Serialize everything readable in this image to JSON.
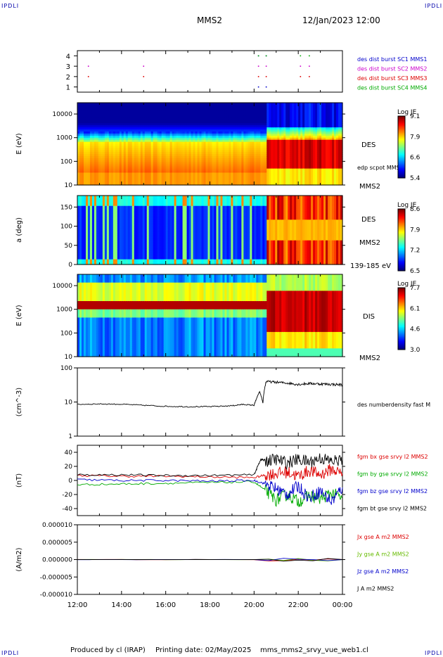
{
  "header": {
    "corner_label": "IPDLI",
    "spacecraft": "MMS2",
    "datetime": "12/Jan/2023 12:00"
  },
  "footer": {
    "produced_by": "Produced by cl (IRAP)",
    "printing_date": "Printing date: 02/May/2025",
    "script_name": "mms_mms2_srvy_vue_web1.cl"
  },
  "x_axis": {
    "ticks": [
      "12:00",
      "14:00",
      "16:00",
      "18:00",
      "20:00",
      "22:00",
      "00:00"
    ],
    "range_hours": [
      12,
      24
    ]
  },
  "chart_data": [
    {
      "type": "scatter",
      "panel": "burst-flags",
      "y_ticks": [
        "4",
        "3",
        "2",
        "1"
      ],
      "ylim": [
        0.5,
        4.5
      ],
      "series": [
        {
          "name": "des dist burst SC1 MMS1",
          "color": "#0000cc",
          "level": 4,
          "x_hours": [
            20.2,
            20.55
          ]
        },
        {
          "name": "des dist burst SC2 MMS2",
          "color": "#cc00cc",
          "level": 3,
          "x_hours": [
            12.5,
            15.0,
            20.2,
            20.55,
            22.1,
            22.5
          ]
        },
        {
          "name": "des dist burst SC3 MMS3",
          "color": "#dd0000",
          "level": 2,
          "x_hours": [
            12.5,
            15.0,
            20.2,
            20.55,
            22.1,
            22.5
          ]
        },
        {
          "name": "des dist burst SC4 MMS4",
          "color": "#00aa00",
          "level": 4,
          "x_hours": [
            20.2,
            20.55,
            22.1,
            22.5
          ]
        }
      ],
      "extra_marks": [
        {
          "color": "#0000cc",
          "level": 1,
          "x_hours": [
            20.2,
            20.55
          ]
        }
      ]
    },
    {
      "type": "heatmap",
      "panel": "des-energy",
      "ylabel": "E (eV)",
      "y_scale": "log",
      "ylim": [
        10,
        30000
      ],
      "y_ticks": [
        "10000",
        "1000",
        "100",
        "10"
      ],
      "species_label": "DES",
      "overlay_label": "edp scpot MMS2",
      "bottom_right_label": "MMS2",
      "colorbar": {
        "title": "Log JE",
        "ticks": [
          "9.1",
          "7.9",
          "6.6",
          "5.4"
        ],
        "range": [
          5.4,
          9.1
        ]
      },
      "boundary_hour": 20.55
    },
    {
      "type": "heatmap",
      "panel": "des-pitch-angle",
      "ylabel": "a (deg)",
      "ylim": [
        0,
        180
      ],
      "y_ticks": [
        "150",
        "100",
        "50",
        "0"
      ],
      "species_label": "DES",
      "bottom_right_label": "MMS2",
      "energy_label": "139-185 eV",
      "colorbar": {
        "title": "Log JE",
        "ticks": [
          "8.6",
          "7.9",
          "7.2",
          "6.5"
        ],
        "range": [
          6.5,
          8.6
        ]
      },
      "boundary_hour": 20.55
    },
    {
      "type": "heatmap",
      "panel": "dis-energy",
      "ylabel": "E (eV)",
      "y_scale": "log",
      "ylim": [
        10,
        30000
      ],
      "y_ticks": [
        "10000",
        "1000",
        "100",
        "10"
      ],
      "species_label": "DIS",
      "bottom_right_label": "MMS2",
      "colorbar": {
        "title": "Log JE",
        "ticks": [
          "7.7",
          "6.1",
          "4.6",
          "3.0"
        ],
        "range": [
          3.0,
          7.7
        ]
      },
      "boundary_hour": 20.55
    },
    {
      "type": "line",
      "panel": "density",
      "ylabel": "(cm^-3)",
      "y_scale": "log",
      "ylim": [
        1,
        100
      ],
      "y_ticks": [
        "100",
        "10",
        "1"
      ],
      "series": [
        {
          "name": "des numberdensity fast M",
          "color": "#000000",
          "x_hours": [
            12.0,
            13.0,
            14.0,
            15.0,
            16.0,
            17.0,
            18.0,
            19.0,
            19.5,
            20.0,
            20.1,
            20.25,
            20.4,
            20.55,
            21.0,
            21.5,
            22.0,
            22.5,
            23.0,
            23.5,
            24.0
          ],
          "y": [
            8.5,
            8.8,
            8.6,
            8.0,
            7.5,
            7.3,
            7.3,
            7.8,
            8.5,
            8.0,
            12,
            20,
            9,
            40,
            38,
            36,
            33,
            35,
            34,
            33,
            32
          ]
        }
      ]
    },
    {
      "type": "line",
      "panel": "magnetic-field",
      "ylabel": "(nT)",
      "ylim": [
        -50,
        50
      ],
      "y_ticks": [
        "40",
        "20",
        "0",
        "-20",
        "-40"
      ],
      "series": [
        {
          "name": "fgm bx gse srvy l2 MMS2",
          "color": "#dd0000",
          "x_hours": [
            12,
            14,
            16,
            18,
            20,
            20.55,
            21,
            21.5,
            22,
            22.5,
            23,
            23.5,
            24
          ],
          "y": [
            7,
            6,
            6,
            5,
            4,
            8,
            10,
            12,
            6,
            14,
            8,
            16,
            10
          ]
        },
        {
          "name": "fgm by gse srvy l2 MMS2",
          "color": "#00aa00",
          "x_hours": [
            12,
            14,
            16,
            18,
            20,
            20.55,
            21,
            21.5,
            22,
            22.5,
            23,
            23.5,
            24
          ],
          "y": [
            -6,
            -5,
            -4,
            -3,
            -2,
            -15,
            -28,
            -20,
            -30,
            -22,
            -26,
            -18,
            -25
          ]
        },
        {
          "name": "fgm bz gse srvy l2 MMS2",
          "color": "#0000cc",
          "x_hours": [
            12,
            14,
            16,
            18,
            20,
            20.55,
            21,
            21.5,
            22,
            22.5,
            23,
            23.5,
            24
          ],
          "y": [
            1,
            0,
            0,
            -1,
            0,
            -5,
            -12,
            -20,
            -8,
            -25,
            -15,
            -30,
            -10
          ]
        },
        {
          "name": "fgm bt gse srvy l2 MMS2",
          "color": "#000000",
          "x_hours": [
            12,
            14,
            16,
            18,
            20,
            20.3,
            20.55,
            21,
            21.5,
            22,
            22.5,
            23,
            23.5,
            24
          ],
          "y": [
            8,
            8,
            7,
            7,
            8,
            30,
            28,
            30,
            25,
            30,
            26,
            32,
            27,
            30
          ]
        }
      ]
    },
    {
      "type": "line",
      "panel": "current-density",
      "ylabel": "(A/m2)",
      "ylim": [
        -1e-05,
        1e-05
      ],
      "y_ticks": [
        "0.000010",
        "0.000005",
        "0.000000",
        "-0.000005",
        "-0.000010"
      ],
      "series": [
        {
          "name": "Jx gse A m2 MMS2",
          "color": "#dd0000",
          "x_hours": [
            12,
            24
          ],
          "y": [
            0,
            0
          ]
        },
        {
          "name": "Jy gse A m2 MMS2",
          "color": "#66bb00",
          "x_hours": [
            12,
            24
          ],
          "y": [
            0,
            0
          ]
        },
        {
          "name": "Jz gse A m2 MMS2",
          "color": "#0000cc",
          "x_hours": [
            12,
            24
          ],
          "y": [
            0,
            0
          ]
        },
        {
          "name": "J A m2 MMS2",
          "color": "#000000",
          "x_hours": [
            12,
            24
          ],
          "y": [
            0,
            0
          ]
        }
      ]
    }
  ]
}
